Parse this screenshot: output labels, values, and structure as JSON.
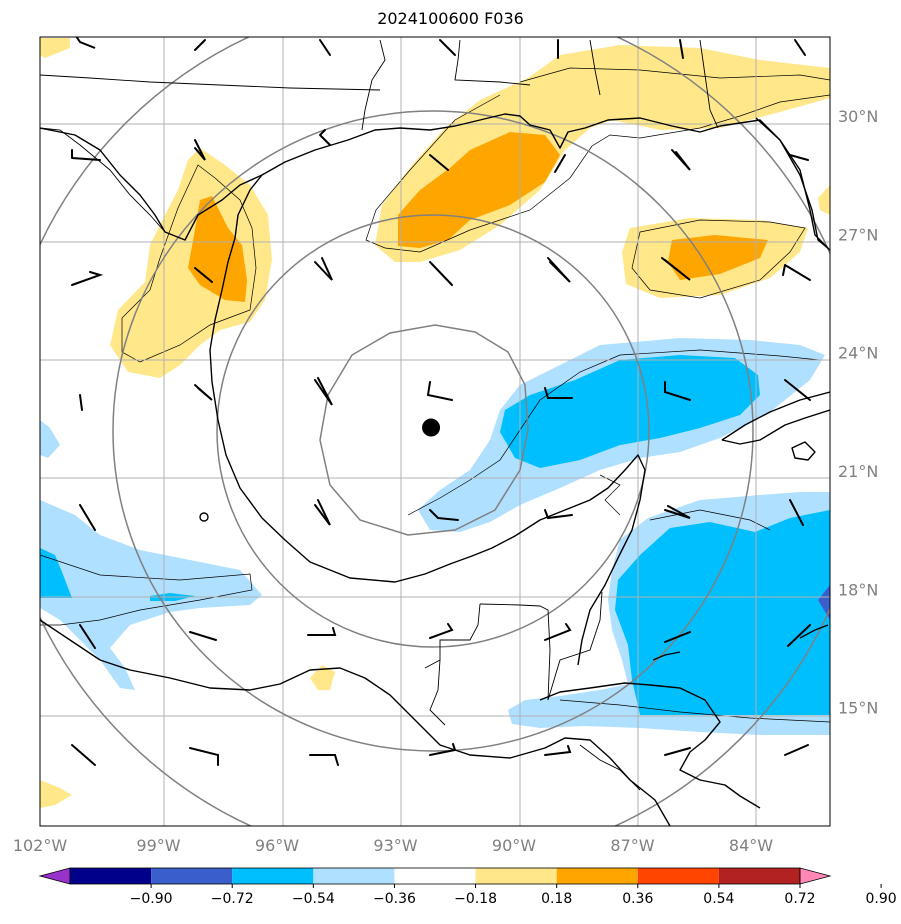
{
  "title": "2024100600 F036",
  "map": {
    "lon_range": [
      -102.0,
      -82.0
    ],
    "lat_range": [
      12.0,
      32.0
    ],
    "lon_ticks": [
      "102°W",
      "99°W",
      "96°W",
      "93°W",
      "90°W",
      "87°W",
      "84°W"
    ],
    "lat_ticks": [
      "30°N",
      "27°N",
      "24°N",
      "21°N",
      "18°N",
      "15°N"
    ],
    "storm_center": {
      "lon": -92.1,
      "lat": 22.1
    },
    "range_rings_deg": [
      3,
      6,
      9,
      12
    ]
  },
  "colorbar": {
    "labels": [
      "−0.90",
      "−0.72",
      "−0.54",
      "−0.36",
      "−0.18",
      "0.18",
      "0.36",
      "0.54",
      "0.72",
      "0.90"
    ],
    "colors": [
      "#9932cc",
      "#00008b",
      "#3a5fcd",
      "#00bfff",
      "#b0e0ff",
      "#ffffff",
      "#ffe78a",
      "#ffa500",
      "#ff4500",
      "#b22222",
      "#ff88b8"
    ]
  },
  "colors": {
    "lt_blue": "#b0e0ff",
    "blue": "#00bfff",
    "med_blue": "#3a5fcd",
    "lt_yellow": "#ffe78a",
    "orange": "#ffa500",
    "grid": "#b0b0b0",
    "ring": "#808080",
    "tick_label": "#808080"
  }
}
